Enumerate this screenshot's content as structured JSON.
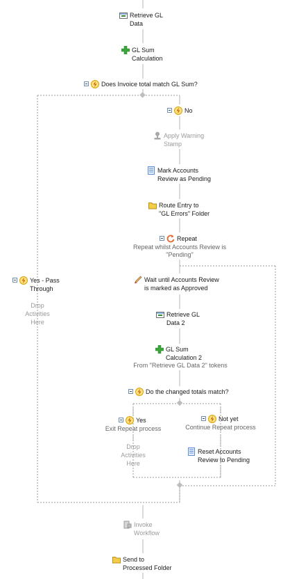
{
  "nodes": {
    "retrieve_gl_data": "Retrieve GL\nData",
    "gl_sum_calculation": "GL Sum\nCalculation",
    "decision_invoice": "Does Invoice total match GL Sum?",
    "branch_no": "No",
    "apply_warning_stamp": "Apply Warning\nStamp",
    "mark_accounts_review": "Mark Accounts\nReview as Pending",
    "route_entry": "Route Entry to\n\"GL Errors\" Folder",
    "repeat": "Repeat",
    "repeat_sub": "Repeat whilst Accounts Review is\n\"Pending\"",
    "wait_until": "Wait until Accounts Review\nis marked as Approved",
    "retrieve_gl_data_2": "Retrieve GL\nData 2",
    "gl_sum_calculation_2": "GL Sum\nCalculation 2",
    "gl_sum_calculation_2_sub": "From \"Retrieve GL Data 2\" tokens",
    "decision_changed": "Do the changed totals match?",
    "branch_yes": "Yes",
    "branch_yes_sub": "Exit Repeat process",
    "branch_not_yet": "Not yet",
    "branch_not_yet_sub": "Continue Repeat process",
    "reset_accounts_review": "Reset Accounts\nReview to Pending",
    "branch_yes_pass": "Yes - Pass\nThrough",
    "invoke_workflow": "Invoke\nWorkflow",
    "send_to_processed": "Send to\nProcessed Folder"
  },
  "drop_placeholder": "Drop\nActivities\nHere",
  "colors": {
    "line": "#b4b4b4",
    "dashed": "#999999",
    "toggle_border": "#6f8db0",
    "lightning": "#f0b400",
    "green_plus": "#3aa63a",
    "folder": "#f3cc4a",
    "document": "#5b8ed6",
    "repeat": "#e2682a",
    "disabled_text": "#9a9a9a"
  }
}
